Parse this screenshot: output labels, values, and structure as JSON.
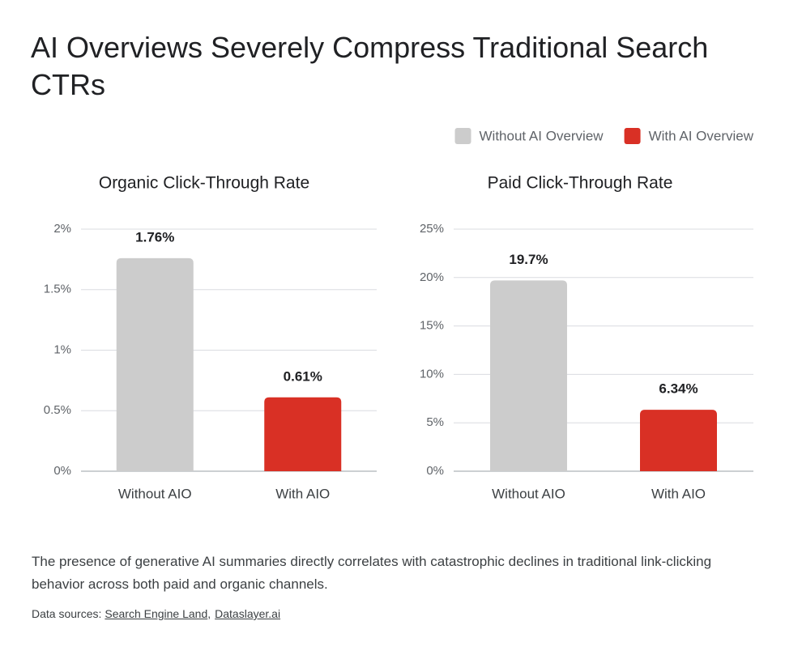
{
  "title": "AI Overviews Severely Compress Traditional Search CTRs",
  "legend": [
    {
      "name": "Without AI Overview",
      "color": "#cccccc"
    },
    {
      "name": "With AI Overview",
      "color": "#d93025"
    }
  ],
  "chart_data": [
    {
      "type": "bar",
      "title": "Organic Click-Through Rate",
      "categories": [
        "Without AIO",
        "With AIO"
      ],
      "values": [
        1.76,
        0.61
      ],
      "value_labels": [
        "1.76%",
        "0.61%"
      ],
      "colors": [
        "#cccccc",
        "#d93025"
      ],
      "ylim": [
        0,
        2
      ],
      "yticks": [
        {
          "value": 0,
          "label": "0%"
        },
        {
          "value": 0.5,
          "label": "0.5%"
        },
        {
          "value": 1,
          "label": "1%"
        },
        {
          "value": 1.5,
          "label": "1.5%"
        },
        {
          "value": 2,
          "label": "2%"
        }
      ],
      "grid": true
    },
    {
      "type": "bar",
      "title": "Paid Click-Through Rate",
      "categories": [
        "Without AIO",
        "With AIO"
      ],
      "values": [
        19.7,
        6.34
      ],
      "value_labels": [
        "19.7%",
        "6.34%"
      ],
      "colors": [
        "#cccccc",
        "#d93025"
      ],
      "ylim": [
        0,
        25
      ],
      "yticks": [
        {
          "value": 0,
          "label": "0%"
        },
        {
          "value": 5,
          "label": "5%"
        },
        {
          "value": 10,
          "label": "10%"
        },
        {
          "value": 15,
          "label": "15%"
        },
        {
          "value": 20,
          "label": "20%"
        },
        {
          "value": 25,
          "label": "25%"
        }
      ],
      "grid": true
    }
  ],
  "caption": "The presence of generative AI summaries directly correlates with catastrophic declines in traditional link-clicking behavior across both paid and organic channels.",
  "sources": {
    "label": "Data sources:",
    "parts": [
      "Search Engine Land",
      ",",
      "Dataslayer.ai"
    ]
  }
}
